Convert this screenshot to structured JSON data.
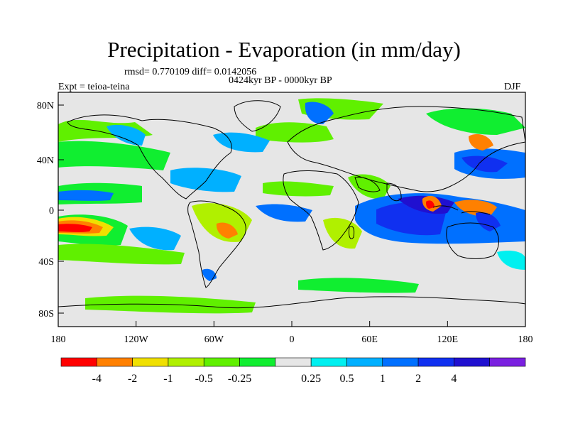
{
  "title": "Precipitation - Evaporation (in mm/day)",
  "stats": "rmsd= 0.770109 diff= 0.0142056",
  "period": "0424kyr BP - 0000kyr BP",
  "experiment": "Expt = teioa-teina",
  "season": "DJF",
  "map": {
    "lat_ticks": [
      "80N",
      "40N",
      "0",
      "40S",
      "80S"
    ],
    "lon_ticks": [
      "180",
      "120W",
      "60W",
      "0",
      "60E",
      "120E",
      "180"
    ],
    "colorbar": {
      "labels": [
        "-4",
        "-2",
        "-1",
        "-0.5",
        "-0.25",
        "0.25",
        "0.5",
        "1",
        "2",
        "4"
      ],
      "colors": [
        "#ff0000",
        "#ff8000",
        "#f0e000",
        "#b0f000",
        "#60f000",
        "#10ee30",
        "#e6e6e6",
        "#00f0f0",
        "#00b0ff",
        "#0070ff",
        "#1030f0",
        "#2010d0",
        "#7a20e0"
      ]
    },
    "land_color": "#e6e6e6"
  }
}
